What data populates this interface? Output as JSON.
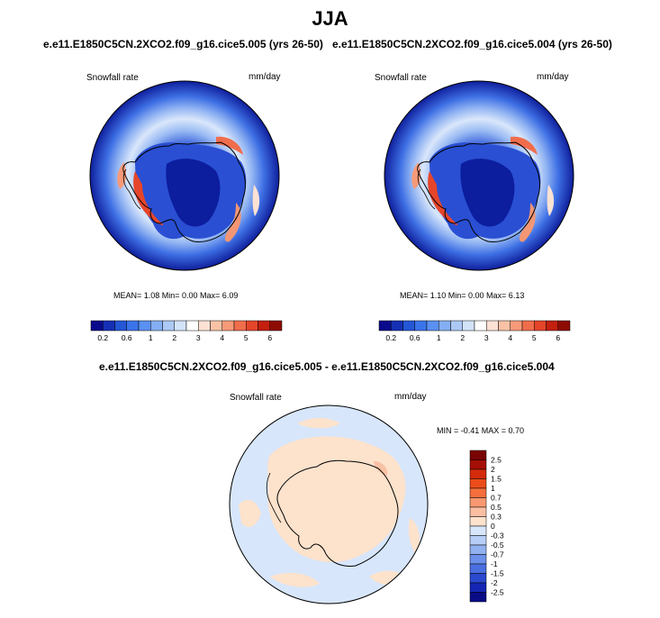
{
  "figure": {
    "season": "JJA",
    "top_left": {
      "case": "e.e11.E1850C5CN.2XCO2.f09_g16.cice5.005 (yrs 26-50)",
      "variable": "Snowfall rate",
      "units": "mm/day",
      "stats": "MEAN=   1.08  Min=   0.00  Max=   6.09"
    },
    "top_right": {
      "case": "e.e11.E1850C5CN.2XCO2.f09_g16.cice5.004 (yrs 26-50)",
      "variable": "Snowfall rate",
      "units": "mm/day",
      "stats": "MEAN=   1.10  Min=   0.00  Max=   6.13"
    },
    "difference": {
      "case": "e.e11.E1850C5CN.2XCO2.f09_g16.cice5.005 - e.e11.E1850C5CN.2XCO2.f09_g16.cice5.004",
      "variable": "Snowfall rate",
      "units": "mm/day",
      "stats": "MIN =  -0.41  MAX =   0.70"
    }
  },
  "colorbar_abs": {
    "colors": [
      "#0b0a8c",
      "#1530b5",
      "#2456d6",
      "#3b74ea",
      "#5a90f0",
      "#84aff4",
      "#acc9f6",
      "#d3e3fa",
      "#ffffff",
      "#fde2d4",
      "#f9c2a6",
      "#f69a79",
      "#f06d4c",
      "#e5452a",
      "#c4200f",
      "#8e0b04"
    ],
    "tick_labels": [
      "0.2",
      "0.6",
      "1",
      "2",
      "3",
      "4",
      "5",
      "6"
    ],
    "tick_positions": [
      1,
      3,
      5,
      7,
      9,
      11,
      13,
      15
    ]
  },
  "colorbar_diff": {
    "colors_top_to_bottom": [
      "#7a0403",
      "#a60f05",
      "#d42b0c",
      "#ec4c1a",
      "#f46f3c",
      "#f99871",
      "#fbbfa2",
      "#fde2cc",
      "#d7e6fb",
      "#b7cff6",
      "#91b1f0",
      "#6d91ea",
      "#4a6fe1",
      "#2b49cf",
      "#1526b4",
      "#0a0c86"
    ],
    "tick_labels_top_to_bottom": [
      "2.5",
      "2",
      "1.5",
      "1",
      "0.7",
      "0.5",
      "0.3",
      "0",
      "-0.3",
      "-0.5",
      "-0.7",
      "-1",
      "-1.5",
      "-2",
      "-2.5"
    ]
  },
  "map_style": {
    "ocean_outer": "#0f1f9c",
    "coast_color": "#000000",
    "diff_background": "#d7e6fb",
    "diff_positive": "#fde2cc"
  }
}
